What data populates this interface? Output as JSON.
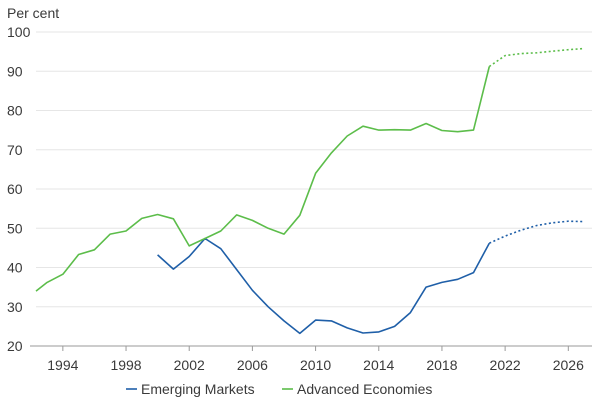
{
  "chart_data": {
    "type": "line",
    "unit_label": "Per cent",
    "ylim": [
      20,
      100
    ],
    "y_ticks": [
      20,
      30,
      40,
      50,
      60,
      70,
      80,
      90,
      100
    ],
    "xlim": [
      1992.3,
      2027.5
    ],
    "x_ticks": [
      1994,
      1998,
      2002,
      2006,
      2010,
      2014,
      2018,
      2022,
      2026
    ],
    "grid": "horizontal",
    "legend_position": "bottom",
    "series": [
      {
        "name": "Emerging Markets",
        "color": "#1f5fa8",
        "x": [
          2000,
          2001,
          2002,
          2003,
          2004,
          2005,
          2006,
          2007,
          2008,
          2009,
          2010,
          2011,
          2012,
          2013,
          2014,
          2015,
          2016,
          2017,
          2018,
          2019,
          2020,
          2021,
          2022,
          2023,
          2024,
          2025,
          2026,
          2027
        ],
        "values": [
          43.2,
          39.6,
          42.8,
          47.4,
          44.8,
          39.5,
          34.2,
          30.0,
          26.4,
          23.2,
          26.6,
          26.4,
          24.6,
          23.3,
          23.6,
          25.0,
          28.5,
          35.0,
          36.2,
          37.0,
          38.7,
          46.2,
          48.0,
          49.5,
          50.7,
          51.4,
          51.8,
          51.7
        ],
        "projection_from_index": 21
      },
      {
        "name": "Advanced Economies",
        "color": "#5cbd4a",
        "x": [
          1992.3,
          1993,
          1994,
          1995,
          1996,
          1997,
          1998,
          1999,
          2000,
          2001,
          2002,
          2003,
          2004,
          2005,
          2006,
          2007,
          2008,
          2009,
          2010,
          2011,
          2012,
          2013,
          2014,
          2015,
          2016,
          2017,
          2018,
          2019,
          2020,
          2021,
          2022,
          2023,
          2024,
          2025,
          2026,
          2027
        ],
        "values": [
          34.0,
          36.2,
          38.3,
          43.3,
          44.5,
          48.5,
          49.3,
          52.5,
          53.5,
          52.4,
          45.5,
          47.4,
          49.3,
          53.4,
          52.0,
          50.0,
          48.5,
          53.3,
          64.0,
          69.2,
          73.5,
          76.0,
          75.0,
          75.1,
          75.0,
          76.7,
          74.9,
          74.6,
          75.0,
          91.2,
          94.0,
          94.5,
          94.7,
          95.1,
          95.5,
          95.8
        ],
        "projection_from_index": 29
      }
    ]
  }
}
